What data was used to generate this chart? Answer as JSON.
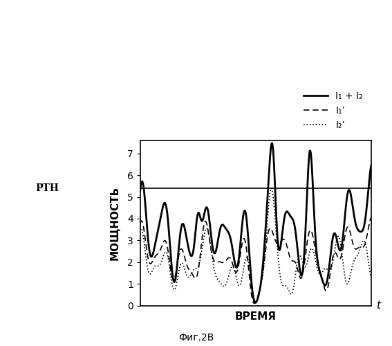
{
  "title": "",
  "xlabel": "ВРЕМЯ",
  "ylabel": "МОЩНОСТЬ",
  "subfig_label": "Фиг.2В",
  "pth_label": "PТН",
  "pth_value": 5.4,
  "ylim": [
    0,
    7.6
  ],
  "yticks": [
    0,
    1,
    2,
    3,
    4,
    5,
    6,
    7
  ],
  "legend_labels": [
    "I₁ + I₂",
    "I₁’",
    "I₂’"
  ],
  "background_color": "#ffffff",
  "line_color": "#000000"
}
